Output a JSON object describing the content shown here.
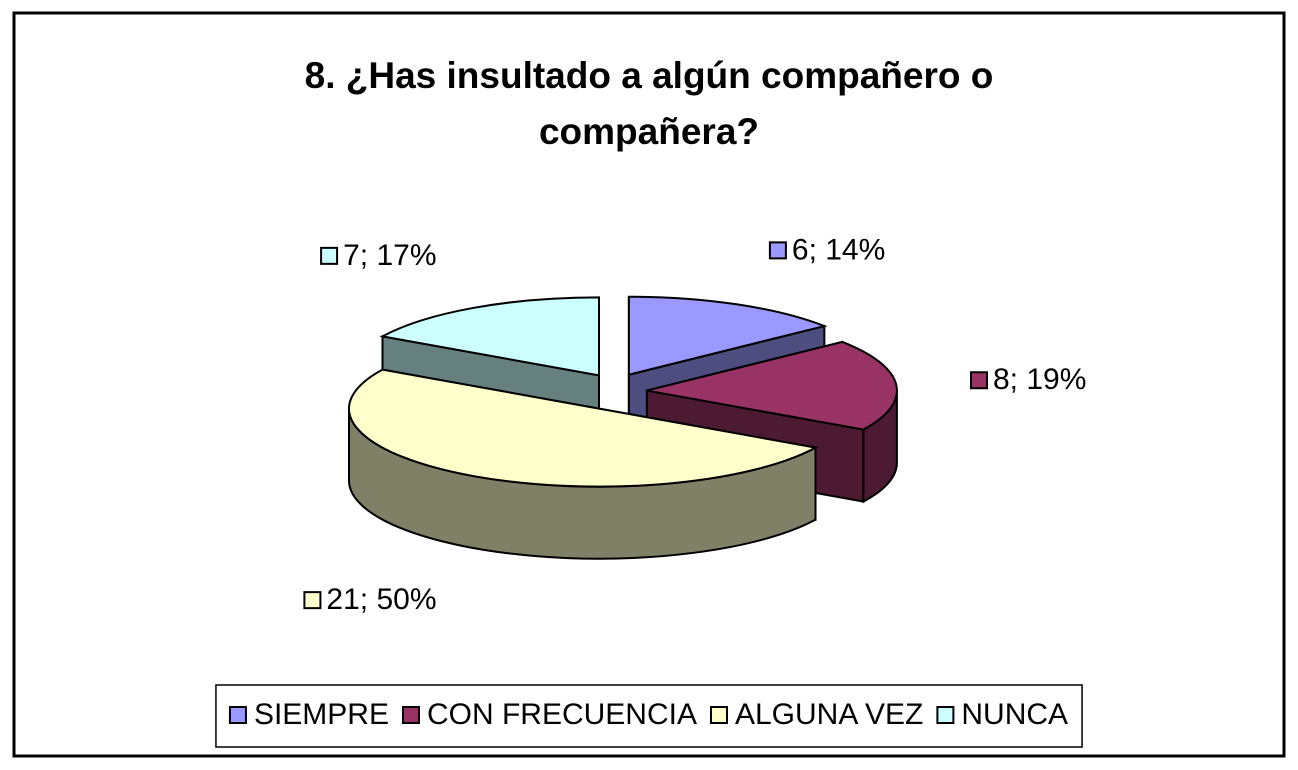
{
  "chart_data": {
    "type": "pie",
    "title": "8. ¿Has insultado a algún compañero o compañera?",
    "categories": [
      "SIEMPRE",
      "CON FRECUENCIA",
      "ALGUNA VEZ",
      "NUNCA"
    ],
    "values": [
      6,
      8,
      21,
      7
    ],
    "value_labels": [
      "6; 14%",
      "8; 19%",
      "21; 50%",
      "7; 17%"
    ],
    "colors": [
      "#9999ff",
      "#993366",
      "#ffffcc",
      "#ccffff"
    ],
    "legend": "bottom"
  }
}
